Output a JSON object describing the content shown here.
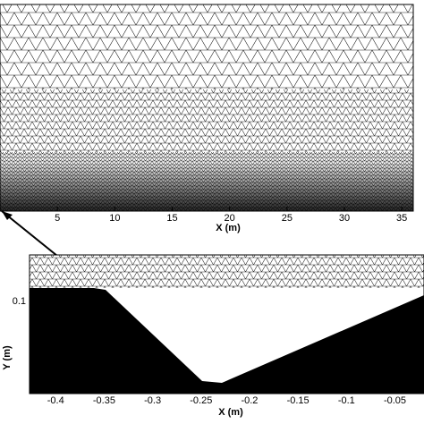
{
  "chart_data": [
    {
      "type": "mesh",
      "xlabel": "X (m)",
      "xlim": [
        0,
        36
      ],
      "xticks": [
        5,
        10,
        15,
        20,
        25,
        30,
        35
      ]
    },
    {
      "type": "mesh",
      "xlabel": "X (m)",
      "ylabel": "Y (m)",
      "xlim": [
        -0.427,
        -0.02
      ],
      "xticks": [
        -0.4,
        -0.35,
        -0.3,
        -0.25,
        -0.2,
        -0.15,
        -0.1,
        -0.05
      ],
      "ylim": [
        0.005,
        0.148
      ],
      "yticks": [
        0.1
      ]
    }
  ]
}
